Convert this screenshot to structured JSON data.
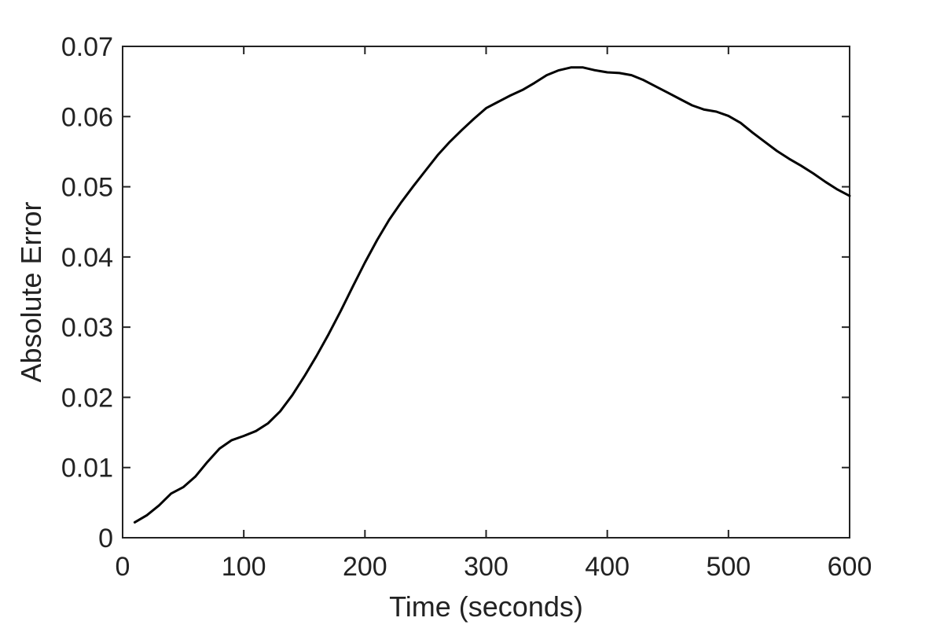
{
  "chart_data": {
    "type": "line",
    "title": "",
    "xlabel": "Time (seconds)",
    "ylabel": "Absolute Error",
    "xlim": [
      0,
      600
    ],
    "ylim": [
      0,
      0.07
    ],
    "xticks": [
      0,
      100,
      200,
      300,
      400,
      500,
      600
    ],
    "xtick_labels": [
      "0",
      "100",
      "200",
      "300",
      "400",
      "500",
      "600"
    ],
    "yticks": [
      0,
      0.01,
      0.02,
      0.03,
      0.04,
      0.05,
      0.06,
      0.07
    ],
    "ytick_labels": [
      "0",
      "0.01",
      "0.02",
      "0.03",
      "0.04",
      "0.05",
      "0.06",
      "0.07"
    ],
    "grid": false,
    "legend": "none",
    "colors": {
      "line": "#000000",
      "axes": "#222222"
    },
    "series": [
      {
        "x": [
          10,
          20,
          30,
          40,
          50,
          60,
          70,
          80,
          90,
          100,
          110,
          120,
          130,
          140,
          150,
          160,
          170,
          180,
          190,
          200,
          210,
          220,
          230,
          240,
          250,
          260,
          270,
          280,
          290,
          300,
          310,
          320,
          330,
          340,
          350,
          360,
          370,
          380,
          390,
          400,
          410,
          420,
          430,
          440,
          450,
          460,
          470,
          480,
          490,
          500,
          510,
          520,
          530,
          540,
          550,
          560,
          570,
          580,
          590,
          600
        ],
        "y": [
          0.0022,
          0.0032,
          0.0046,
          0.0063,
          0.0072,
          0.0087,
          0.0108,
          0.0127,
          0.0139,
          0.0145,
          0.0152,
          0.0163,
          0.018,
          0.0203,
          0.023,
          0.0259,
          0.029,
          0.0323,
          0.0358,
          0.0392,
          0.0424,
          0.0453,
          0.0478,
          0.0501,
          0.0523,
          0.0545,
          0.0564,
          0.0581,
          0.0597,
          0.0612,
          0.0621,
          0.063,
          0.0638,
          0.0648,
          0.0659,
          0.0666,
          0.067,
          0.067,
          0.0666,
          0.0663,
          0.0662,
          0.0659,
          0.0652,
          0.0643,
          0.0634,
          0.0625,
          0.0616,
          0.061,
          0.0607,
          0.0601,
          0.0591,
          0.0577,
          0.0564,
          0.0551,
          0.054,
          0.053,
          0.0519,
          0.0507,
          0.0496,
          0.0487
        ]
      }
    ]
  }
}
